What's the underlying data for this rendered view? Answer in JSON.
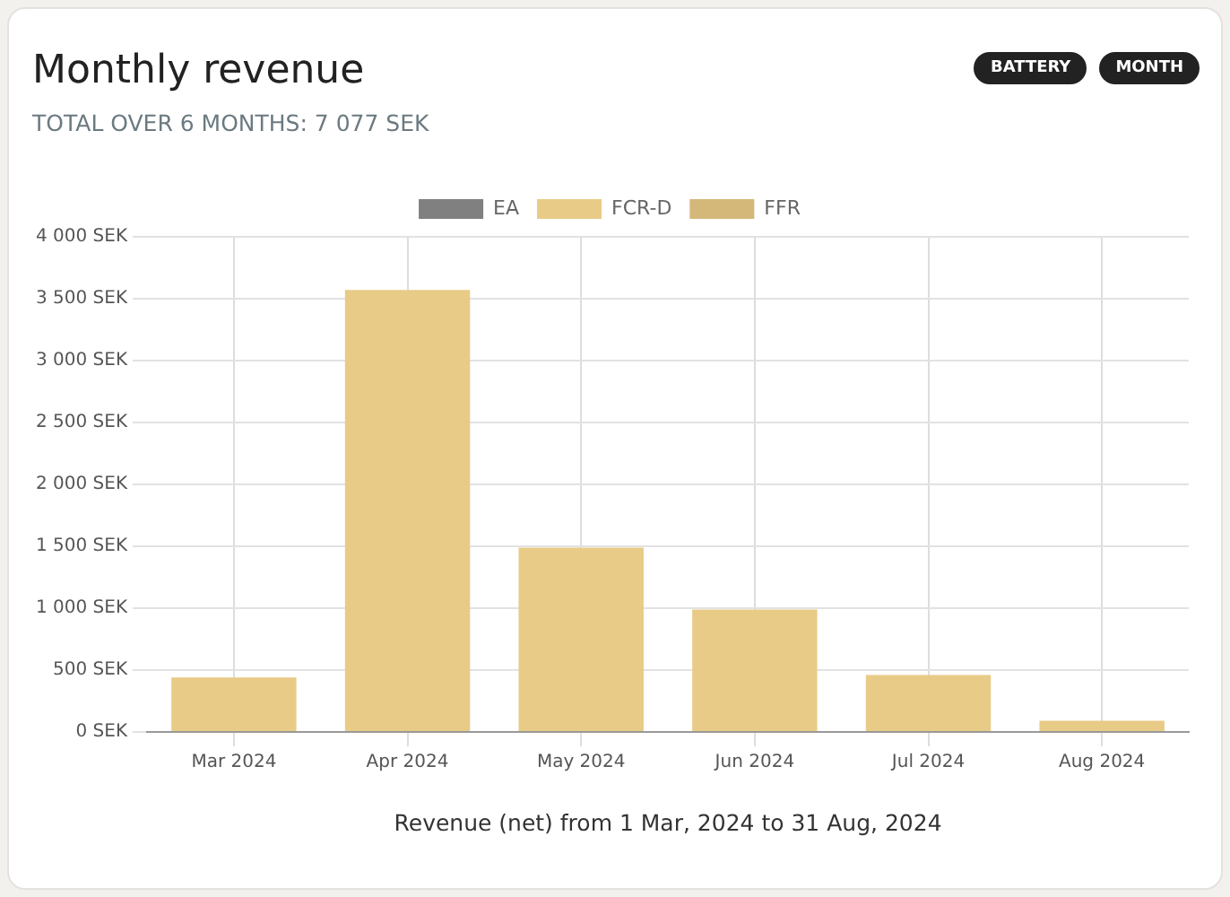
{
  "chart_data": {
    "type": "bar",
    "title": "Monthly revenue",
    "subtitle": "TOTAL OVER 6 MONTHS: 7 077 SEK",
    "xlabel": "Revenue (net) from 1 Mar, 2024 to 31 Aug, 2024",
    "annotations": [
      "BATTERY",
      "MONTH"
    ],
    "categories": [
      "Mar 2024",
      "Apr 2024",
      "May 2024",
      "Jun 2024",
      "Jul 2024",
      "Aug 2024"
    ],
    "series": [
      {
        "name": "EA",
        "color": "#808080",
        "values": [
          0,
          0,
          0,
          0,
          0,
          0
        ]
      },
      {
        "name": "FCR-D",
        "color": "#e8cb87",
        "values": [
          440,
          3570,
          1490,
          990,
          460,
          90
        ]
      },
      {
        "name": "FFR",
        "color": "#d4b87a",
        "values": [
          0,
          0,
          0,
          0,
          0,
          0
        ]
      }
    ],
    "stacked": true,
    "ylim": [
      0,
      4000
    ],
    "yticks": [
      {
        "value": 0,
        "label": "0 SEK"
      },
      {
        "value": 500,
        "label": "500 SEK"
      },
      {
        "value": 1000,
        "label": "1 000 SEK"
      },
      {
        "value": 1500,
        "label": "1 500 SEK"
      },
      {
        "value": 2000,
        "label": "2 000 SEK"
      },
      {
        "value": 2500,
        "label": "2 500 SEK"
      },
      {
        "value": 3000,
        "label": "3 000 SEK"
      },
      {
        "value": 3500,
        "label": "3 500 SEK"
      },
      {
        "value": 4000,
        "label": "4 000 SEK"
      }
    ],
    "grid": true,
    "legend": "top"
  }
}
